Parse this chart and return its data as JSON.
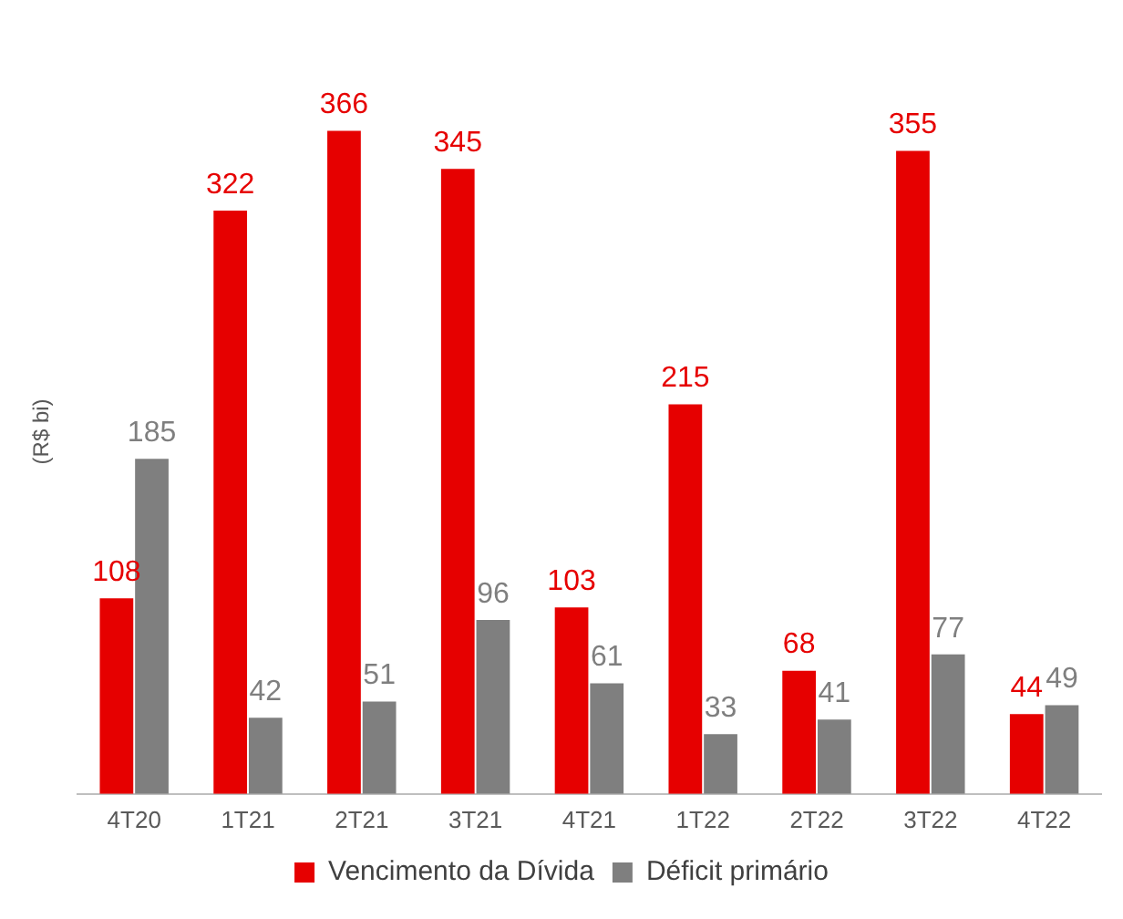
{
  "chart_data": {
    "type": "bar",
    "ylabel": "(R$ bi)",
    "categories": [
      "4T20",
      "1T21",
      "2T21",
      "3T21",
      "4T21",
      "1T22",
      "2T22",
      "3T22",
      "4T22"
    ],
    "series": [
      {
        "name": "Vencimento da Dívida",
        "color": "#e60000",
        "values": [
          108,
          322,
          366,
          345,
          103,
          215,
          68,
          355,
          44
        ]
      },
      {
        "name": "Déficit primário",
        "color": "#7f7f7f",
        "values": [
          185,
          42,
          51,
          96,
          61,
          33,
          41,
          77,
          49
        ]
      }
    ],
    "data_labels": true,
    "legend": "bottom",
    "grid": false
  }
}
